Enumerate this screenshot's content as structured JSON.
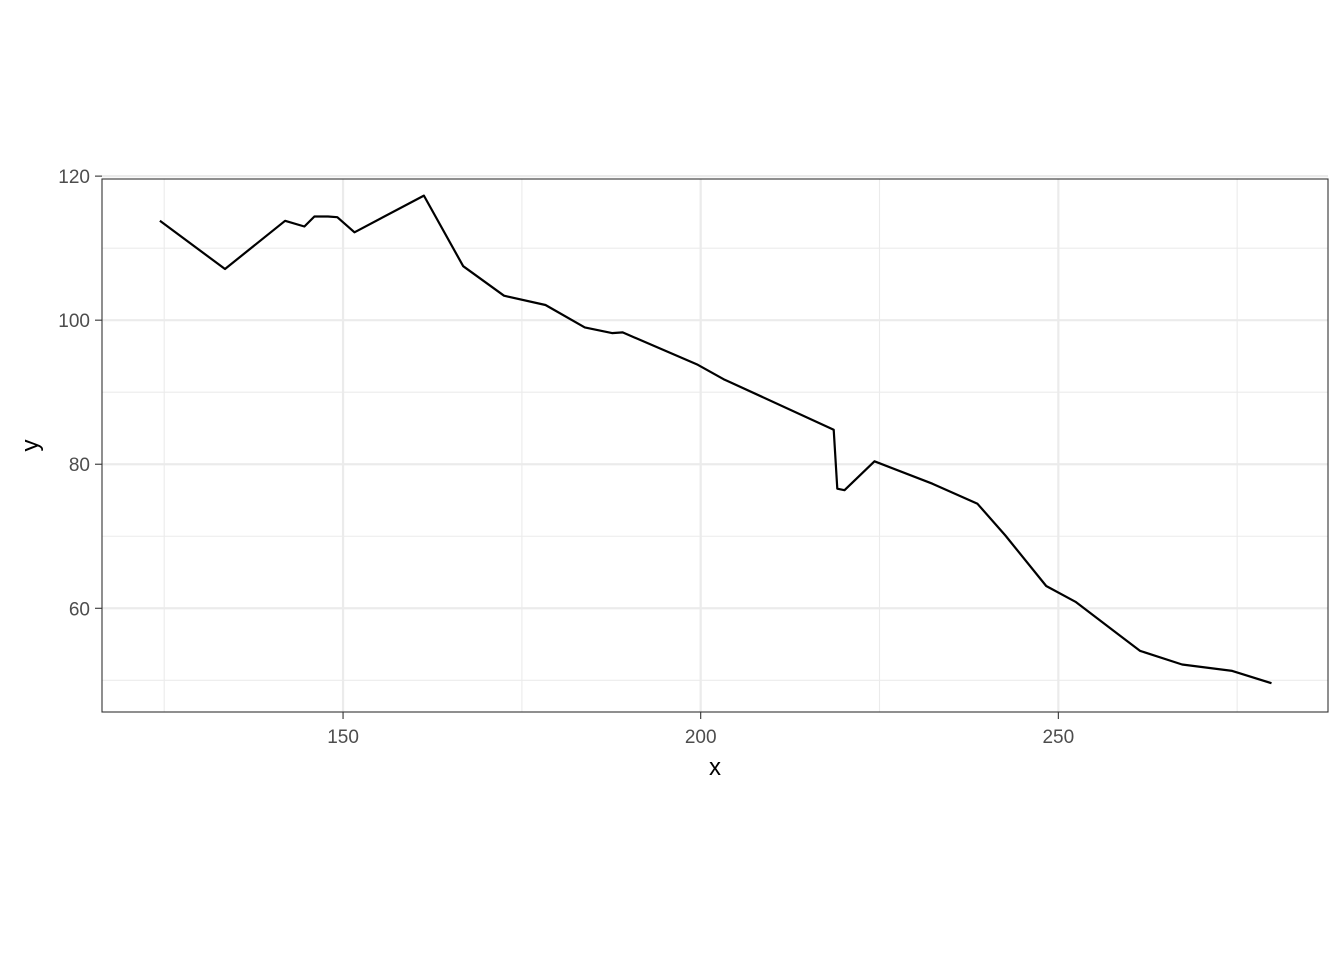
{
  "chart_data": {
    "type": "line",
    "title": "",
    "xlabel": "x",
    "ylabel": "y",
    "xlim": [
      116.3,
      287.7
    ],
    "ylim": [
      45.6,
      119.6
    ],
    "x_ticks": [
      150,
      200,
      250
    ],
    "x_minor_ticks": [
      125,
      175,
      225,
      275
    ],
    "y_ticks": [
      60,
      80,
      100,
      120
    ],
    "y_minor_ticks": [
      50,
      70,
      90,
      110
    ],
    "grid": true,
    "legend": "none",
    "series": [
      {
        "x": [
          124.4,
          133.5,
          141.9,
          144.6,
          146.0,
          147.9,
          149.2,
          151.6,
          161.3,
          166.8,
          172.5,
          178.3,
          183.8,
          187.6,
          189.1,
          199.6,
          203.2,
          218.6,
          219.1,
          220.1,
          224.3,
          232.4,
          238.7,
          242.6,
          248.3,
          252.4,
          261.4,
          267.3,
          274.3,
          279.8
        ],
        "y": [
          113.8,
          107.1,
          113.8,
          113.0,
          114.4,
          114.4,
          114.3,
          112.2,
          117.3,
          107.5,
          103.4,
          102.1,
          99.0,
          98.2,
          98.3,
          93.8,
          91.8,
          84.8,
          76.6,
          76.4,
          80.4,
          77.3,
          74.5,
          70.1,
          63.1,
          60.9,
          54.1,
          52.2,
          51.3,
          49.6
        ]
      }
    ],
    "style": {
      "background": "#ffffff",
      "panel_border": "#333333",
      "grid_major": "#ebebeb",
      "grid_minor": "#ebebeb",
      "line_color": "#000000",
      "tick_color": "#333333"
    }
  }
}
